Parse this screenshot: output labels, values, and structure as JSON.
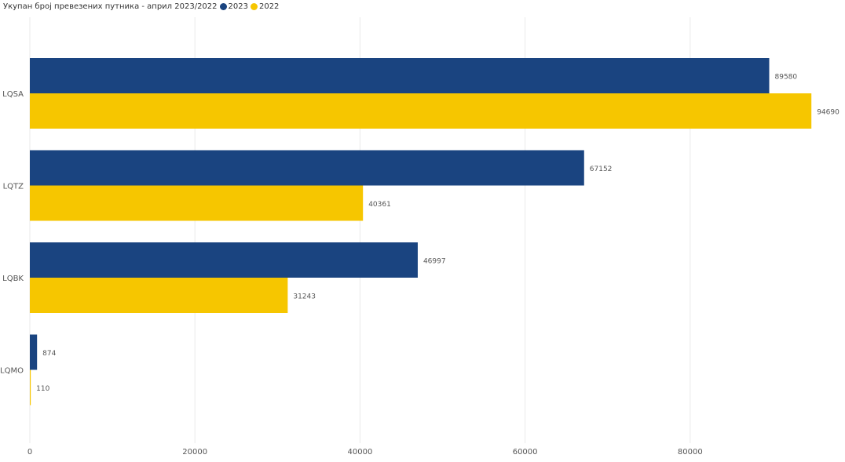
{
  "chart_data": {
    "type": "bar",
    "orientation": "horizontal",
    "title": "Укупан број превезених путника - април 2023/2022",
    "categories": [
      "LQSA",
      "LQTZ",
      "LQBK",
      "LQMO"
    ],
    "series": [
      {
        "name": "2023",
        "color": "#1a4480",
        "values": [
          89580,
          67152,
          46997,
          874
        ]
      },
      {
        "name": "2022",
        "color": "#f6c600",
        "values": [
          94690,
          40361,
          31243,
          110
        ]
      }
    ],
    "xlim": [
      0,
      98000
    ],
    "xticks": [
      "0",
      "20000",
      "40000",
      "60000",
      "80000"
    ],
    "grid": "vertical",
    "legend_position": "top-left",
    "data_labels": true
  }
}
